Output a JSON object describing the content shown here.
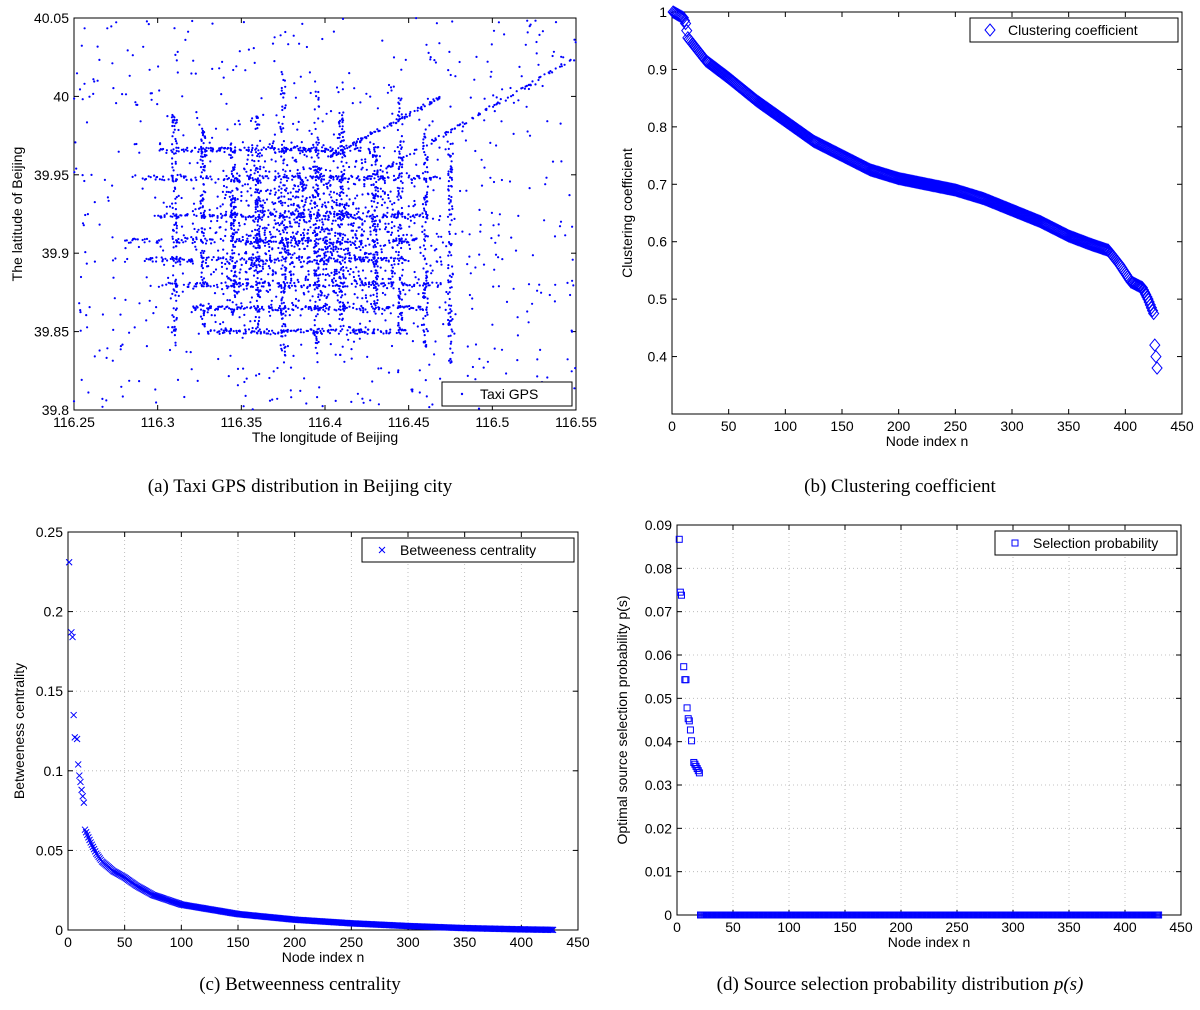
{
  "chart_data": [
    {
      "type": "scatter",
      "caption": "(a) Taxi GPS distribution in Beijing city",
      "xlabel": "The longitude of Beijing",
      "ylabel": "The latitude of Beijing",
      "xlim": [
        116.25,
        116.55
      ],
      "ylim": [
        39.8,
        40.05
      ],
      "xticks": [
        116.25,
        116.3,
        116.35,
        116.4,
        116.45,
        116.5,
        116.55
      ],
      "xtick_labels": [
        "116.25",
        "116.3",
        "116.35",
        "116.4",
        "116.45",
        "116.5",
        "116.55"
      ],
      "yticks": [
        39.8,
        39.85,
        39.9,
        39.95,
        40,
        40.05
      ],
      "ytick_labels": [
        "39.8",
        "39.85",
        "39.9",
        "39.95",
        "40",
        "40.05"
      ],
      "grid": false,
      "legend": "Taxi GPS",
      "legend_position": "bottom-right",
      "color": "#0000ff",
      "roads": {
        "horizontal": [
          {
            "lat": 39.966,
            "lon": [
              116.3,
              116.43
            ]
          },
          {
            "lat": 39.948,
            "lon": [
              116.29,
              116.47
            ]
          },
          {
            "lat": 39.924,
            "lon": [
              116.3,
              116.46
            ]
          },
          {
            "lat": 39.908,
            "lon": [
              116.28,
              116.46
            ]
          },
          {
            "lat": 39.896,
            "lon": [
              116.29,
              116.45
            ]
          },
          {
            "lat": 39.88,
            "lon": [
              116.3,
              116.47
            ]
          },
          {
            "lat": 39.865,
            "lon": [
              116.32,
              116.46
            ]
          },
          {
            "lat": 39.85,
            "lon": [
              116.33,
              116.45
            ]
          }
        ],
        "vertical": [
          {
            "lon": 116.31,
            "lat": [
              39.84,
              39.99
            ]
          },
          {
            "lon": 116.327,
            "lat": [
              39.85,
              39.98
            ]
          },
          {
            "lon": 116.345,
            "lat": [
              39.86,
              39.97
            ]
          },
          {
            "lon": 116.36,
            "lat": [
              39.85,
              39.99
            ]
          },
          {
            "lon": 116.375,
            "lat": [
              39.83,
              40.02
            ]
          },
          {
            "lon": 116.395,
            "lat": [
              39.83,
              40.01
            ]
          },
          {
            "lon": 116.41,
            "lat": [
              39.85,
              39.99
            ]
          },
          {
            "lon": 116.43,
            "lat": [
              39.86,
              39.97
            ]
          },
          {
            "lon": 116.445,
            "lat": [
              39.85,
              40.0
            ]
          },
          {
            "lon": 116.46,
            "lat": [
              39.84,
              39.98
            ]
          },
          {
            "lon": 116.475,
            "lat": [
              39.83,
              39.97
            ]
          }
        ],
        "diagonal": [
          {
            "from": [
              116.43,
              39.95
            ],
            "to": [
              116.55,
              40.025
            ]
          },
          {
            "from": [
              116.4,
              39.96
            ],
            "to": [
              116.47,
              40.0
            ]
          }
        ]
      }
    },
    {
      "type": "scatter",
      "caption": "(b) Clustering coefficient",
      "xlabel": "Node index n",
      "ylabel": "Clustering coefficient",
      "xlim": [
        0,
        450
      ],
      "ylim": [
        0.3,
        1
      ],
      "xticks": [
        0,
        50,
        100,
        150,
        200,
        250,
        300,
        350,
        400,
        450
      ],
      "xtick_labels": [
        "0",
        "50",
        "100",
        "150",
        "200",
        "250",
        "300",
        "350",
        "400",
        "450"
      ],
      "yticks": [
        0.4,
        0.5,
        0.6,
        0.7,
        0.8,
        0.9,
        1
      ],
      "ytick_labels": [
        "0.4",
        "0.5",
        "0.6",
        "0.7",
        "0.8",
        "0.9",
        "1"
      ],
      "grid": false,
      "legend": "Clustering coefficient",
      "legend_position": "top-right",
      "marker": "diamond",
      "color": "#0000ff",
      "n_points": 428,
      "curve": {
        "x": [
          1,
          10,
          12,
          14,
          20,
          30,
          50,
          75,
          100,
          125,
          150,
          175,
          200,
          225,
          250,
          275,
          300,
          325,
          350,
          370,
          385,
          395,
          405,
          415,
          420,
          425,
          426,
          428
        ],
        "y": [
          1.0,
          0.99,
          0.98,
          0.955,
          0.94,
          0.915,
          0.885,
          0.845,
          0.81,
          0.775,
          0.75,
          0.725,
          0.71,
          0.7,
          0.69,
          0.675,
          0.655,
          0.635,
          0.61,
          0.595,
          0.585,
          0.56,
          0.53,
          0.52,
          0.5,
          0.475,
          0.42,
          0.38
        ]
      }
    },
    {
      "type": "scatter",
      "caption": "(c) Betweenness centrality",
      "xlabel": "Node index n",
      "ylabel": "Betweeness centrality",
      "xlim": [
        0,
        450
      ],
      "ylim": [
        0,
        0.25
      ],
      "xticks": [
        0,
        50,
        100,
        150,
        200,
        250,
        300,
        350,
        400,
        450
      ],
      "xtick_labels": [
        "0",
        "50",
        "100",
        "150",
        "200",
        "250",
        "300",
        "350",
        "400",
        "450"
      ],
      "yticks": [
        0,
        0.05,
        0.1,
        0.15,
        0.2,
        0.25
      ],
      "ytick_labels": [
        "0",
        "0.05",
        "0.1",
        "0.15",
        "0.2",
        "0.25"
      ],
      "grid": true,
      "legend": "Betweeness centrality",
      "legend_position": "top-right",
      "marker": "x",
      "color": "#0000ff",
      "n_points": 428,
      "head": {
        "x": [
          1,
          3,
          4,
          5,
          6,
          8,
          9,
          10,
          11,
          12,
          13,
          14
        ],
        "y": [
          0.231,
          0.187,
          0.184,
          0.135,
          0.121,
          0.12,
          0.104,
          0.097,
          0.093,
          0.088,
          0.084,
          0.08
        ]
      },
      "curve": {
        "x": [
          15,
          20,
          25,
          30,
          40,
          50,
          60,
          75,
          100,
          125,
          150,
          200,
          250,
          300,
          350,
          400,
          428
        ],
        "y": [
          0.063,
          0.055,
          0.048,
          0.043,
          0.037,
          0.033,
          0.028,
          0.022,
          0.016,
          0.013,
          0.01,
          0.0065,
          0.0042,
          0.0025,
          0.0012,
          0.0004,
          0.0001
        ]
      }
    },
    {
      "type": "scatter",
      "caption": "(d) Source selection probability distribution ",
      "caption_math": "p(s)",
      "xlabel": "Node index n",
      "ylabel": "Optimal source selection probability p(s)",
      "xlim": [
        0,
        450
      ],
      "ylim": [
        0,
        0.09
      ],
      "xticks": [
        0,
        50,
        100,
        150,
        200,
        250,
        300,
        350,
        400,
        450
      ],
      "xtick_labels": [
        "0",
        "50",
        "100",
        "150",
        "200",
        "250",
        "300",
        "350",
        "400",
        "450"
      ],
      "yticks": [
        0,
        0.01,
        0.02,
        0.03,
        0.04,
        0.05,
        0.06,
        0.07,
        0.08,
        0.09
      ],
      "ytick_labels": [
        "0",
        "0.01",
        "0.02",
        "0.03",
        "0.04",
        "0.05",
        "0.06",
        "0.07",
        "0.08",
        "0.09"
      ],
      "grid": true,
      "legend": "Selection probability",
      "legend_position": "top-right",
      "marker": "square",
      "color": "#0000ff",
      "n_points": 430,
      "head": {
        "x": [
          2,
          3,
          4,
          6,
          7,
          8,
          9,
          10,
          11,
          12,
          13,
          15,
          16,
          17,
          18,
          19,
          20
        ],
        "y": [
          0.0867,
          0.0745,
          0.0738,
          0.0573,
          0.0543,
          0.0543,
          0.0478,
          0.0453,
          0.0448,
          0.0427,
          0.0402,
          0.0352,
          0.0348,
          0.0343,
          0.0338,
          0.0333,
          0.0328
        ]
      },
      "tail": {
        "x_from": 21,
        "x_to": 430,
        "y": 0
      }
    }
  ]
}
